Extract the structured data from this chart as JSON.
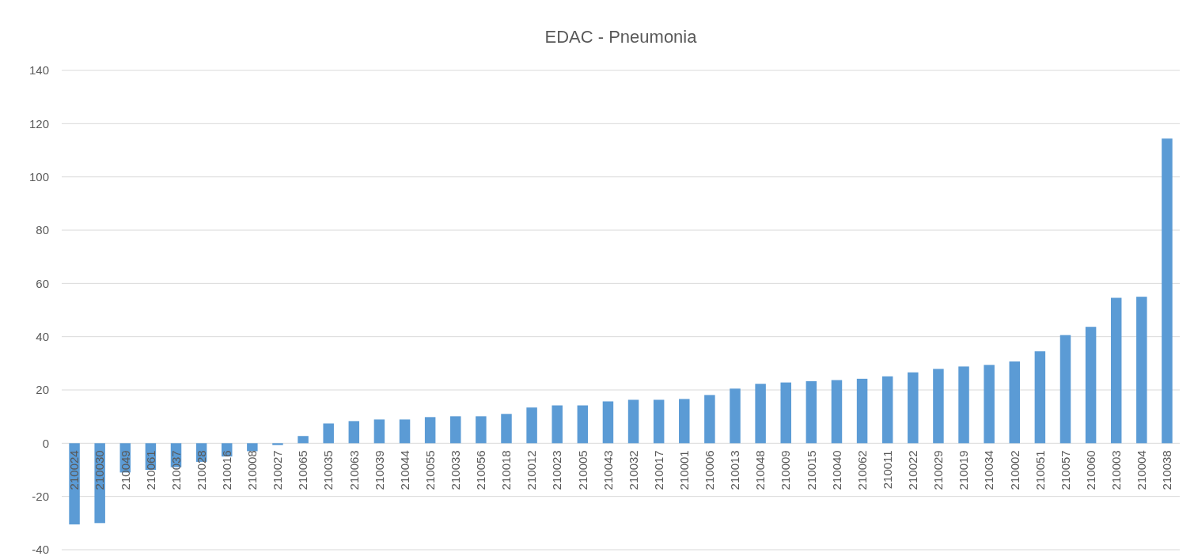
{
  "chart_data": {
    "type": "bar",
    "title": "EDAC - Pneumonia",
    "categories": [
      "210024",
      "210030",
      "210049",
      "210061",
      "210037",
      "210028",
      "210016",
      "210008",
      "210027",
      "210065",
      "210035",
      "210063",
      "210039",
      "210044",
      "210055",
      "210033",
      "210056",
      "210018",
      "210012",
      "210023",
      "210005",
      "210043",
      "210032",
      "210017",
      "210001",
      "210006",
      "210013",
      "210048",
      "210009",
      "210015",
      "210040",
      "210062",
      "210011",
      "210022",
      "210029",
      "210019",
      "210034",
      "210002",
      "210051",
      "210057",
      "210060",
      "210003",
      "210004",
      "210038"
    ],
    "values": [
      -30.5,
      -30,
      -11,
      -10,
      -9,
      -7,
      -5,
      -3,
      -0.7,
      2.7,
      7.4,
      8.3,
      8.9,
      8.9,
      9.8,
      10.1,
      10.1,
      11,
      13.4,
      14.2,
      14.2,
      15.7,
      16.3,
      16.3,
      16.6,
      18.1,
      20.5,
      22.3,
      22.8,
      23.3,
      23.7,
      24.2,
      25.1,
      26.6,
      27.9,
      28.8,
      29.4,
      30.7,
      34.5,
      40.6,
      43.7,
      54.6,
      55,
      114.4
    ],
    "color": "#5b9bd5",
    "ylim": [
      -40,
      140
    ],
    "yticks": [
      -40,
      -20,
      0,
      20,
      40,
      60,
      80,
      100,
      120,
      140
    ],
    "grid": "y"
  }
}
